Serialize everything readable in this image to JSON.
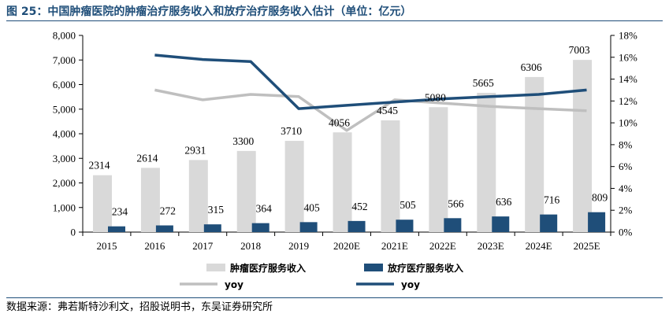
{
  "title": "图 25：中国肿瘤医院的肿瘤治疗服务收入和放疗治疗服务收入估计（单位：亿元）",
  "source": "数据来源：弗若斯特沙利文，招股说明书，东吴证券研究所",
  "colors": {
    "bar1": "#d9d9d9",
    "bar2": "#1f4e79",
    "line1": "#bfbfbf",
    "line2": "#1f4e79",
    "title": "#1f4e79"
  },
  "chart_data": {
    "type": "bar",
    "categories": [
      "2015",
      "2016",
      "2017",
      "2018",
      "2019",
      "2020E",
      "2021E",
      "2022E",
      "2023E",
      "2024E",
      "2025E"
    ],
    "series": [
      {
        "name": "肿瘤医疗服务收入",
        "kind": "bar",
        "axis": "left",
        "values": [
          2314,
          2614,
          2931,
          3300,
          3710,
          4056,
          4545,
          5080,
          5665,
          6306,
          7003
        ]
      },
      {
        "name": "放疗医疗服务收入",
        "kind": "bar",
        "axis": "left",
        "values": [
          234,
          272,
          315,
          364,
          405,
          452,
          505,
          566,
          636,
          716,
          809
        ]
      },
      {
        "name": "yoy",
        "kind": "line",
        "axis": "right",
        "values": [
          null,
          13.0,
          12.1,
          12.6,
          12.4,
          9.3,
          12.1,
          11.8,
          11.5,
          11.3,
          11.1
        ]
      },
      {
        "name": "yoy",
        "kind": "line",
        "axis": "right",
        "values": [
          null,
          16.2,
          15.8,
          15.6,
          11.3,
          11.6,
          11.9,
          12.2,
          12.4,
          12.6,
          13.0
        ]
      }
    ],
    "y_left": {
      "min": 0,
      "max": 8000,
      "step": 1000,
      "ticks": [
        "0",
        "1,000",
        "2,000",
        "3,000",
        "4,000",
        "5,000",
        "6,000",
        "7,000",
        "8,000"
      ]
    },
    "y_right": {
      "min": 0,
      "max": 18,
      "step": 2,
      "ticks": [
        "0%",
        "2%",
        "4%",
        "6%",
        "8%",
        "10%",
        "12%",
        "14%",
        "16%",
        "18%"
      ]
    },
    "legend": {
      "position": "bottom",
      "entries": [
        "肿瘤医疗服务收入",
        "放疗医疗服务收入",
        "yoy",
        "yoy"
      ]
    }
  }
}
